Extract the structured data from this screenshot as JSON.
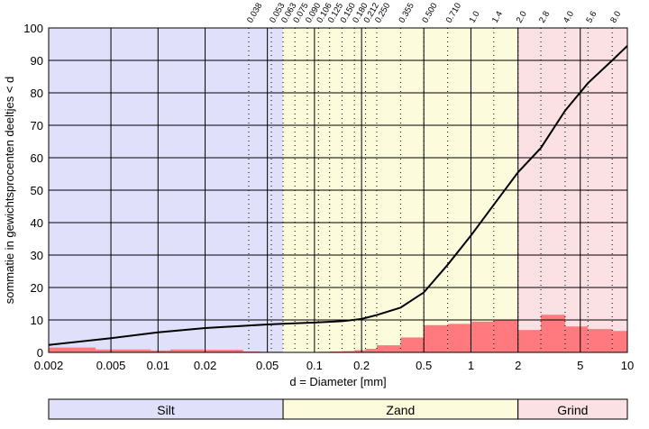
{
  "chart_data": {
    "type": "line",
    "xscale": "log",
    "xlim": [
      0.002,
      10
    ],
    "ylim": [
      0,
      100
    ],
    "xlabel": "d = Diameter [mm]",
    "ylabel": "sommatie in gewichtsprocenten deeltjes < d",
    "x_ticks": [
      {
        "value": 0.002,
        "label": "0.002"
      },
      {
        "value": 0.005,
        "label": "0.005"
      },
      {
        "value": 0.01,
        "label": "0.01"
      },
      {
        "value": 0.02,
        "label": "0.02"
      },
      {
        "value": 0.05,
        "label": "0.05"
      },
      {
        "value": 0.1,
        "label": "0.1"
      },
      {
        "value": 0.2,
        "label": "0.2"
      },
      {
        "value": 0.5,
        "label": "0.5"
      },
      {
        "value": 1,
        "label": "1"
      },
      {
        "value": 2,
        "label": "2"
      },
      {
        "value": 5,
        "label": "5"
      },
      {
        "value": 10,
        "label": "10"
      }
    ],
    "y_ticks": [
      0,
      10,
      20,
      30,
      40,
      50,
      60,
      70,
      80,
      90,
      100
    ],
    "sieve_sizes": [
      {
        "value": 0.038,
        "label": "0.038"
      },
      {
        "value": 0.053,
        "label": "0.053"
      },
      {
        "value": 0.063,
        "label": "0.063"
      },
      {
        "value": 0.075,
        "label": "0.075"
      },
      {
        "value": 0.09,
        "label": "0.090"
      },
      {
        "value": 0.106,
        "label": "0.106"
      },
      {
        "value": 0.125,
        "label": "0.125"
      },
      {
        "value": 0.15,
        "label": "0.150"
      },
      {
        "value": 0.18,
        "label": "0.180"
      },
      {
        "value": 0.212,
        "label": "0.212"
      },
      {
        "value": 0.25,
        "label": "0.250"
      },
      {
        "value": 0.355,
        "label": "0.355"
      },
      {
        "value": 0.5,
        "label": "0.500"
      },
      {
        "value": 0.71,
        "label": "0.710"
      },
      {
        "value": 1.0,
        "label": "1.0"
      },
      {
        "value": 1.4,
        "label": "1.4"
      },
      {
        "value": 2.0,
        "label": "2.0"
      },
      {
        "value": 2.8,
        "label": "2.8"
      },
      {
        "value": 4.0,
        "label": "4.0"
      },
      {
        "value": 5.6,
        "label": "5.6"
      },
      {
        "value": 8.0,
        "label": "8.0"
      }
    ],
    "regions": [
      {
        "label": "Silt",
        "from": 0.002,
        "to": 0.063,
        "color": "#e0e0fb"
      },
      {
        "label": "Zand",
        "from": 0.063,
        "to": 2.0,
        "color": "#fcfcdc"
      },
      {
        "label": "Grind",
        "from": 2.0,
        "to": 10,
        "color": "#fbe0e4"
      }
    ],
    "cumulative": {
      "x": [
        0.002,
        0.005,
        0.01,
        0.02,
        0.05,
        0.063,
        0.1,
        0.15,
        0.2,
        0.25,
        0.355,
        0.5,
        0.71,
        1.0,
        1.4,
        2.0,
        2.8,
        4.0,
        5.6,
        8.0,
        10
      ],
      "y": [
        2.3,
        4.4,
        6.2,
        7.5,
        8.6,
        8.8,
        9.2,
        9.6,
        10.3,
        11.5,
        13.8,
        18.5,
        27.0,
        36.0,
        45.5,
        55.5,
        63.0,
        74.5,
        83.0,
        90.0,
        94.5
      ],
      "color": "#000000"
    },
    "fractions": {
      "bins": [
        {
          "from": 0.002,
          "to": 0.004,
          "value": 1.5
        },
        {
          "from": 0.004,
          "to": 0.009,
          "value": 0.9
        },
        {
          "from": 0.009,
          "to": 0.012,
          "value": 0.6
        },
        {
          "from": 0.012,
          "to": 0.02,
          "value": 0.9
        },
        {
          "from": 0.02,
          "to": 0.035,
          "value": 0.8
        },
        {
          "from": 0.035,
          "to": 0.045,
          "value": 0.3
        },
        {
          "from": 0.045,
          "to": 0.063,
          "value": 0.2
        },
        {
          "from": 0.106,
          "to": 0.125,
          "value": 0.2
        },
        {
          "from": 0.125,
          "to": 0.15,
          "value": 0.3
        },
        {
          "from": 0.15,
          "to": 0.18,
          "value": 0.4
        },
        {
          "from": 0.18,
          "to": 0.212,
          "value": 0.7
        },
        {
          "from": 0.212,
          "to": 0.25,
          "value": 1.1
        },
        {
          "from": 0.25,
          "to": 0.355,
          "value": 2.2
        },
        {
          "from": 0.355,
          "to": 0.5,
          "value": 4.6
        },
        {
          "from": 0.5,
          "to": 0.71,
          "value": 8.4
        },
        {
          "from": 0.71,
          "to": 1.0,
          "value": 8.8
        },
        {
          "from": 1.0,
          "to": 1.4,
          "value": 9.5
        },
        {
          "from": 1.4,
          "to": 2.0,
          "value": 10.0
        },
        {
          "from": 2.0,
          "to": 2.8,
          "value": 6.9
        },
        {
          "from": 2.8,
          "to": 4.0,
          "value": 11.6
        },
        {
          "from": 4.0,
          "to": 5.6,
          "value": 8.0
        },
        {
          "from": 5.6,
          "to": 8.0,
          "value": 7.2
        },
        {
          "from": 8.0,
          "to": 10,
          "value": 6.6
        }
      ],
      "color": "#ff7a7e"
    },
    "grid": true
  }
}
